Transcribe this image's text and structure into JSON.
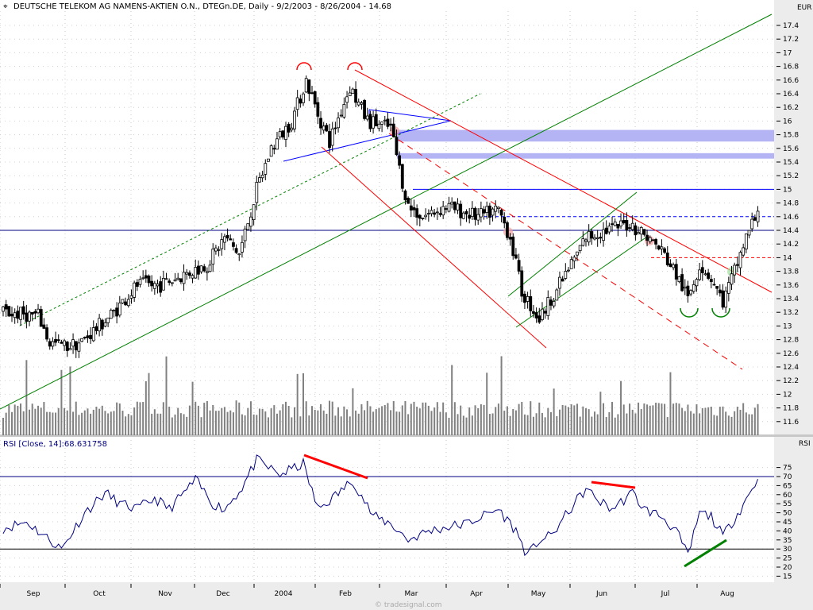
{
  "header": {
    "title": "DEUTSCHE TELEKOM AG NAMENS-AKTIEN O.N., DTEGn.DE, Daily - 9/2/2003 - 8/26/2004 - 14.68",
    "icon": "pin-icon"
  },
  "watermark": "© tradesignal.com",
  "chart_data": [
    {
      "type": "candlestick",
      "title": "DEUTSCHE TELEKOM AG NAMENS-AKTIEN O.N., DTEGn.DE, Daily - 9/2/2003 - 8/26/2004 - 14.68",
      "ylabel": "EUR",
      "ylim": [
        11.5,
        17.6
      ],
      "yticks": [
        "17.4",
        "17.2",
        "17",
        "16.8",
        "16.6",
        "16.4",
        "16.2",
        "16",
        "15.8",
        "15.6",
        "15.4",
        "15.2",
        "15",
        "14.8",
        "14.6",
        "14.4",
        "14.2",
        "14",
        "13.8",
        "13.6",
        "13.4",
        "13.2",
        "13",
        "12.8",
        "12.6",
        "12.4",
        "12.2",
        "12",
        "11.8",
        "11.6"
      ],
      "xticks": [
        "Sep",
        "Oct",
        "Nov",
        "Dec",
        "2004",
        "Feb",
        "Mar",
        "Apr",
        "May",
        "Jun",
        "Jul",
        "Aug"
      ],
      "last_close": 14.68,
      "close_anchors": [
        [
          0,
          13.2
        ],
        [
          12,
          13.15
        ],
        [
          16,
          12.75
        ],
        [
          22,
          12.7
        ],
        [
          27,
          12.77
        ],
        [
          38,
          13.2
        ],
        [
          46,
          13.6
        ],
        [
          54,
          13.6
        ],
        [
          62,
          13.75
        ],
        [
          70,
          13.9
        ],
        [
          76,
          14.3
        ],
        [
          81,
          14.05
        ],
        [
          87,
          15.0
        ],
        [
          92,
          15.6
        ],
        [
          99,
          16.0
        ],
        [
          104,
          16.6
        ],
        [
          108,
          16.1
        ],
        [
          112,
          15.7
        ],
        [
          119,
          16.5
        ],
        [
          125,
          16.0
        ],
        [
          133,
          15.9
        ],
        [
          136,
          15.3
        ],
        [
          139,
          14.75
        ],
        [
          144,
          14.6
        ],
        [
          152,
          14.75
        ],
        [
          163,
          14.6
        ],
        [
          170,
          14.7
        ],
        [
          174,
          14.3
        ],
        [
          178,
          13.5
        ],
        [
          184,
          13.1
        ],
        [
          188,
          13.4
        ],
        [
          193,
          13.75
        ],
        [
          200,
          14.3
        ],
        [
          207,
          14.4
        ],
        [
          215,
          14.5
        ],
        [
          220,
          14.35
        ],
        [
          226,
          14.1
        ],
        [
          231,
          13.75
        ],
        [
          235,
          13.4
        ],
        [
          239,
          13.9
        ],
        [
          243,
          13.7
        ],
        [
          247,
          13.35
        ],
        [
          251,
          13.8
        ],
        [
          255,
          14.3
        ],
        [
          259,
          14.68
        ]
      ],
      "levels": [
        {
          "name": "resistance-15",
          "value": 15.0,
          "color": "#0000ff",
          "style": "solid"
        },
        {
          "name": "level-14-6",
          "value": 14.6,
          "color": "#0000ff",
          "style": "dashed"
        },
        {
          "name": "level-14-4",
          "value": 14.4,
          "color": "#000080",
          "style": "solid"
        },
        {
          "name": "level-14",
          "value": 14.0,
          "color": "#ff0000",
          "style": "dashed"
        }
      ],
      "zones": [
        [
          15.7,
          15.87
        ],
        [
          15.45,
          15.53
        ]
      ],
      "colors": {
        "up": "#ffffff",
        "down": "#000000",
        "volume": "#808080",
        "zone": "#b4b4f5"
      }
    },
    {
      "type": "line",
      "title": "RSI [Close, 14]:68.631758",
      "label": "RSI",
      "ylim": [
        12,
        80
      ],
      "yticks": [
        "75",
        "70",
        "65",
        "60",
        "55",
        "50",
        "45",
        "40",
        "35",
        "30",
        "25",
        "20",
        "15"
      ],
      "last_value": 68.631758,
      "levels": [
        70,
        30
      ],
      "rsi_anchors": [
        [
          0,
          41.5
        ],
        [
          8,
          45
        ],
        [
          16,
          35
        ],
        [
          20,
          30
        ],
        [
          28,
          50
        ],
        [
          35,
          61
        ],
        [
          40,
          55
        ],
        [
          46,
          52
        ],
        [
          52,
          58
        ],
        [
          57,
          52
        ],
        [
          66,
          68
        ],
        [
          72,
          55
        ],
        [
          76,
          52
        ],
        [
          82,
          64
        ],
        [
          87,
          79
        ],
        [
          95,
          71
        ],
        [
          103,
          77
        ],
        [
          108,
          52
        ],
        [
          113,
          58
        ],
        [
          120,
          68
        ],
        [
          127,
          48
        ],
        [
          133,
          44
        ],
        [
          139,
          35
        ],
        [
          146,
          40
        ],
        [
          152,
          42
        ],
        [
          159,
          44
        ],
        [
          163,
          47
        ],
        [
          170,
          52
        ],
        [
          176,
          40
        ],
        [
          180,
          26
        ],
        [
          184,
          35
        ],
        [
          188,
          37
        ],
        [
          196,
          55
        ],
        [
          200,
          63
        ],
        [
          205,
          56
        ],
        [
          209,
          52
        ],
        [
          216,
          61
        ],
        [
          220,
          52
        ],
        [
          226,
          48
        ],
        [
          231,
          40
        ],
        [
          235,
          26
        ],
        [
          239,
          50
        ],
        [
          243,
          48
        ],
        [
          247,
          37
        ],
        [
          253,
          52
        ],
        [
          259,
          68.6
        ]
      ],
      "color": "#000080"
    }
  ]
}
